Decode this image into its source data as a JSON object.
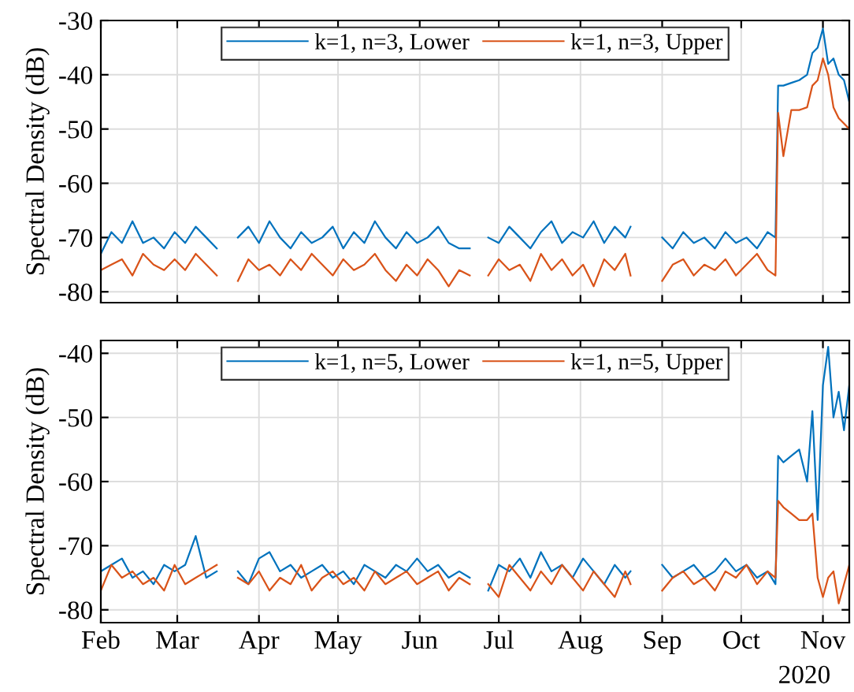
{
  "chart_data": [
    {
      "type": "line",
      "ylabel": "Spectral Density (dB)",
      "x": [
        "2020-02-01",
        "2020-02-05",
        "2020-02-09",
        "2020-02-13",
        "2020-02-17",
        "2020-02-21",
        "2020-02-25",
        "2020-02-29",
        "2020-03-04",
        "2020-03-08",
        "2020-03-12",
        "2020-03-16",
        "2020-03-20",
        "2020-03-24",
        "2020-03-28",
        "2020-04-01",
        "2020-04-05",
        "2020-04-09",
        "2020-04-13",
        "2020-04-17",
        "2020-04-21",
        "2020-04-25",
        "2020-04-29",
        "2020-05-03",
        "2020-05-07",
        "2020-05-11",
        "2020-05-15",
        "2020-05-19",
        "2020-05-23",
        "2020-05-27",
        "2020-05-31",
        "2020-06-04",
        "2020-06-08",
        "2020-06-12",
        "2020-06-16",
        "2020-06-20",
        "2020-06-23",
        "2020-06-27",
        "2020-07-01",
        "2020-07-05",
        "2020-07-09",
        "2020-07-13",
        "2020-07-17",
        "2020-07-21",
        "2020-07-25",
        "2020-07-29",
        "2020-08-02",
        "2020-08-06",
        "2020-08-10",
        "2020-08-14",
        "2020-08-18",
        "2020-08-20",
        "2020-08-26",
        "2020-09-01",
        "2020-09-05",
        "2020-09-09",
        "2020-09-13",
        "2020-09-17",
        "2020-09-21",
        "2020-09-25",
        "2020-09-29",
        "2020-10-03",
        "2020-10-07",
        "2020-10-11",
        "2020-10-14",
        "2020-10-15",
        "2020-10-17",
        "2020-10-20",
        "2020-10-23",
        "2020-10-26",
        "2020-10-28",
        "2020-10-30",
        "2020-11-01",
        "2020-11-03",
        "2020-11-05",
        "2020-11-07",
        "2020-11-09",
        "2020-11-11"
      ],
      "series": [
        {
          "name": "k=1, n=3, Lower",
          "color": "#0072bd",
          "values": [
            -73,
            -69,
            -71,
            -67,
            -71,
            -70,
            -72,
            -69,
            -71,
            -68,
            -70,
            -72,
            null,
            -70,
            -68,
            -71,
            -67,
            -70,
            -72,
            -69,
            -71,
            -70,
            -68,
            -72,
            -69,
            -71,
            -67,
            -70,
            -72,
            -69,
            -71,
            -70,
            -68,
            -71,
            -72,
            -72,
            null,
            -70,
            -71,
            -68,
            -70,
            -72,
            -69,
            -67,
            -71,
            -69,
            -70,
            -67,
            -71,
            -68,
            -70,
            -68,
            null,
            -70,
            -72,
            -69,
            -71,
            -70,
            -72,
            -69,
            -71,
            -70,
            -72,
            -69,
            -70,
            -42,
            -42,
            -41.5,
            -41,
            -40,
            -36,
            -35,
            -31.5,
            -38,
            -37,
            -40,
            -41,
            -45
          ]
        },
        {
          "name": "k=1, n=3, Upper",
          "color": "#d95319",
          "values": [
            -76,
            -75,
            -74,
            -77,
            -73,
            -75,
            -76,
            -74,
            -76,
            -73,
            -75,
            -77,
            null,
            -78,
            -74,
            -76,
            -75,
            -77,
            -74,
            -76,
            -73,
            -75,
            -77,
            -74,
            -76,
            -75,
            -73,
            -76,
            -78,
            -75,
            -77,
            -74,
            -76,
            -79,
            -76,
            -77,
            null,
            -77,
            -74,
            -76,
            -75,
            -78,
            -73,
            -76,
            -74,
            -77,
            -75,
            -79,
            -74,
            -76,
            -73,
            -77,
            null,
            -78,
            -75,
            -74,
            -77,
            -75,
            -76,
            -74,
            -77,
            -75,
            -73,
            -76,
            -77,
            -47,
            -55,
            -46.5,
            -46.5,
            -46,
            -42,
            -41,
            -37,
            -40,
            -46,
            -48,
            -49,
            -50
          ]
        }
      ],
      "xlim": [
        "2020-02-01",
        "2020-11-11"
      ],
      "ylim": [
        -82,
        -30
      ],
      "yticks": [
        -80,
        -70,
        -60,
        -50,
        -40,
        -30
      ],
      "grid": true,
      "legend": "top",
      "tick_labels": "y"
    },
    {
      "type": "line",
      "ylabel": "Spectral Density (dB)",
      "annotations": [
        "2020"
      ],
      "x": [
        "2020-02-01",
        "2020-02-05",
        "2020-02-09",
        "2020-02-13",
        "2020-02-17",
        "2020-02-21",
        "2020-02-25",
        "2020-02-29",
        "2020-03-04",
        "2020-03-08",
        "2020-03-12",
        "2020-03-16",
        "2020-03-20",
        "2020-03-24",
        "2020-03-28",
        "2020-04-01",
        "2020-04-05",
        "2020-04-09",
        "2020-04-13",
        "2020-04-17",
        "2020-04-21",
        "2020-04-25",
        "2020-04-29",
        "2020-05-03",
        "2020-05-07",
        "2020-05-11",
        "2020-05-15",
        "2020-05-19",
        "2020-05-23",
        "2020-05-27",
        "2020-05-31",
        "2020-06-04",
        "2020-06-08",
        "2020-06-12",
        "2020-06-16",
        "2020-06-20",
        "2020-06-23",
        "2020-06-27",
        "2020-07-01",
        "2020-07-05",
        "2020-07-09",
        "2020-07-13",
        "2020-07-17",
        "2020-07-21",
        "2020-07-25",
        "2020-07-29",
        "2020-08-02",
        "2020-08-06",
        "2020-08-10",
        "2020-08-14",
        "2020-08-18",
        "2020-08-20",
        "2020-08-26",
        "2020-09-01",
        "2020-09-05",
        "2020-09-09",
        "2020-09-13",
        "2020-09-17",
        "2020-09-21",
        "2020-09-25",
        "2020-09-29",
        "2020-10-03",
        "2020-10-07",
        "2020-10-11",
        "2020-10-14",
        "2020-10-15",
        "2020-10-17",
        "2020-10-20",
        "2020-10-23",
        "2020-10-26",
        "2020-10-28",
        "2020-10-30",
        "2020-11-01",
        "2020-11-03",
        "2020-11-05",
        "2020-11-07",
        "2020-11-09",
        "2020-11-11"
      ],
      "series": [
        {
          "name": "k=1, n=5, Lower",
          "color": "#0072bd",
          "values": [
            -74,
            -73,
            -72,
            -75,
            -74,
            -76,
            -73,
            -74,
            -73,
            -68.5,
            -75,
            -74,
            null,
            -74,
            -76,
            -72,
            -71,
            -74,
            -73,
            -75,
            -74,
            -73,
            -75,
            -74,
            -76,
            -73,
            -74,
            -75,
            -73,
            -74,
            -72,
            -74,
            -73,
            -75,
            -74,
            -75,
            null,
            -77,
            -73,
            -74,
            -72,
            -75,
            -71,
            -74,
            -73,
            -75,
            -72,
            -74,
            -76,
            -73,
            -75,
            -74,
            null,
            -73,
            -75,
            -74,
            -73,
            -75,
            -74,
            -72,
            -74,
            -73,
            -75,
            -74,
            -76,
            -56,
            -57,
            -56,
            -55,
            -60,
            -49,
            -66,
            -45,
            -39,
            -50,
            -46,
            -52,
            -45
          ]
        },
        {
          "name": "k=1, n=5, Upper",
          "color": "#d95319",
          "values": [
            -77,
            -73,
            -75,
            -74,
            -76,
            -75,
            -77,
            -73,
            -76,
            -75,
            -74,
            -73,
            null,
            -75,
            -76,
            -74,
            -77,
            -75,
            -76,
            -73,
            -77,
            -75,
            -74,
            -76,
            -75,
            -77,
            -74,
            -76,
            -75,
            -74,
            -76,
            -75,
            -74,
            -77,
            -75,
            -76,
            null,
            -76,
            -78,
            -73,
            -75,
            -77,
            -74,
            -76,
            -73,
            -75,
            -77,
            -74,
            -76,
            -78,
            -74,
            -76,
            null,
            -77,
            -75,
            -74,
            -76,
            -75,
            -77,
            -74,
            -75,
            -73,
            -76,
            -74,
            -75,
            -63,
            -64,
            -65,
            -66,
            -66,
            -65,
            -75,
            -78,
            -75,
            -74,
            -79,
            -76,
            -73
          ]
        }
      ],
      "xlim": [
        "2020-02-01",
        "2020-11-11"
      ],
      "xticks": [
        {
          "value": "2020-02-01",
          "label": "Feb"
        },
        {
          "value": "2020-03-01",
          "label": "Mar"
        },
        {
          "value": "2020-04-01",
          "label": "Apr"
        },
        {
          "value": "2020-05-01",
          "label": "May"
        },
        {
          "value": "2020-06-01",
          "label": "Jun"
        },
        {
          "value": "2020-07-01",
          "label": "Jul"
        },
        {
          "value": "2020-08-01",
          "label": "Aug"
        },
        {
          "value": "2020-09-01",
          "label": "Sep"
        },
        {
          "value": "2020-10-01",
          "label": "Oct"
        },
        {
          "value": "2020-11-01",
          "label": "Nov"
        }
      ],
      "ylim": [
        -82,
        -38
      ],
      "yticks": [
        -80,
        -70,
        -60,
        -50,
        -40
      ],
      "grid": true,
      "legend": "top"
    }
  ]
}
